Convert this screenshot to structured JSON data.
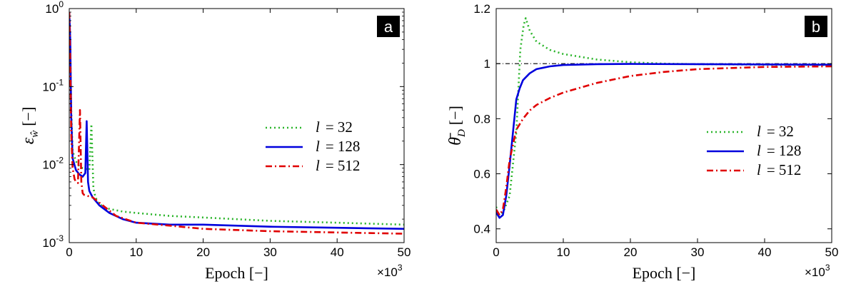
{
  "chart_data": [
    {
      "panel": "a",
      "type": "line",
      "yscale": "log",
      "xlabel": "Epoch [−]",
      "x_multiplier": "×10",
      "x_multiplier_exp": "3",
      "ylabel": "ε",
      "ylabel_sub": "ŵ",
      "ylabel_unit": "[−]",
      "xlim": [
        0,
        50
      ],
      "ylim": [
        0.001,
        1
      ],
      "x_ticks": [
        0,
        10,
        20,
        30,
        40,
        50
      ],
      "x_tick_labels": [
        "0",
        "10",
        "20",
        "30",
        "40",
        "50"
      ],
      "y_ticks": [
        0.001,
        0.01,
        0.1,
        1
      ],
      "y_tick_base": [
        "10",
        "10",
        "10",
        "10"
      ],
      "y_tick_exp": [
        "-3",
        "-2",
        "-1",
        "0"
      ],
      "legend": {
        "position": "center-right",
        "entries": [
          {
            "prefix": "l",
            "text": "= 32",
            "color": "#2bb52b",
            "dash": "2,4"
          },
          {
            "prefix": "l",
            "text": "= 128",
            "color": "#0000dd",
            "dash": ""
          },
          {
            "prefix": "l",
            "text": "= 512",
            "color": "#e00000",
            "dash": "9,4,2,4"
          }
        ]
      },
      "series": [
        {
          "name": "l = 32",
          "color": "#2bb52b",
          "dash": "2,4",
          "x": [
            0,
            0.15,
            0.3,
            0.5,
            1.0,
            1.5,
            2.0,
            2.5,
            3.0,
            3.3,
            3.6,
            3.8,
            4.2,
            5,
            6,
            8,
            10,
            15,
            20,
            30,
            40,
            50
          ],
          "y": [
            0.9,
            0.3,
            0.05,
            0.015,
            0.011,
            0.0095,
            0.009,
            0.0088,
            0.0085,
            0.033,
            0.005,
            0.0042,
            0.0033,
            0.0029,
            0.0027,
            0.0025,
            0.0024,
            0.0022,
            0.0021,
            0.0019,
            0.0018,
            0.0017
          ]
        },
        {
          "name": "l = 128",
          "color": "#0000dd",
          "dash": "",
          "x": [
            0,
            0.15,
            0.3,
            0.5,
            1.0,
            1.5,
            2.0,
            2.4,
            2.6,
            2.8,
            3.0,
            3.5,
            4.5,
            6,
            8,
            10,
            15,
            20,
            30,
            40,
            50
          ],
          "y": [
            0.9,
            0.4,
            0.04,
            0.012,
            0.0085,
            0.0075,
            0.007,
            0.0078,
            0.036,
            0.006,
            0.0046,
            0.0038,
            0.003,
            0.0024,
            0.002,
            0.0018,
            0.0017,
            0.0017,
            0.0016,
            0.00155,
            0.0015
          ]
        },
        {
          "name": "l = 512",
          "color": "#e00000",
          "dash": "9,4,2,4",
          "x": [
            0,
            0.15,
            0.3,
            0.5,
            0.8,
            1.0,
            1.3,
            1.6,
            1.8,
            2.0,
            2.2,
            2.6,
            3.5,
            5,
            7,
            10,
            15,
            20,
            30,
            40,
            50
          ],
          "y": [
            0.9,
            0.2,
            0.025,
            0.009,
            0.0065,
            0.006,
            0.0058,
            0.05,
            0.006,
            0.0043,
            0.0041,
            0.004,
            0.0038,
            0.003,
            0.0022,
            0.0018,
            0.00165,
            0.0015,
            0.0014,
            0.00135,
            0.0013
          ]
        }
      ],
      "badge": "a"
    },
    {
      "panel": "b",
      "type": "line",
      "yscale": "linear",
      "xlabel": "Epoch [−]",
      "x_multiplier": "×10",
      "x_multiplier_exp": "3",
      "ylabel": "θ̄",
      "ylabel_sub": "D",
      "ylabel_unit": "[−]",
      "xlim": [
        0,
        50
      ],
      "ylim": [
        0.35,
        1.2
      ],
      "x_ticks": [
        0,
        10,
        20,
        30,
        40,
        50
      ],
      "x_tick_labels": [
        "0",
        "10",
        "20",
        "30",
        "40",
        "50"
      ],
      "y_ticks": [
        0.4,
        0.6,
        0.8,
        1.0,
        1.2
      ],
      "y_tick_labels": [
        "0.4",
        "0.6",
        "0.8",
        "1",
        "1.2"
      ],
      "reference_line": {
        "y": 1.0,
        "color": "#000000",
        "dash": "6,3,1,3"
      },
      "legend": {
        "position": "center-right",
        "entries": [
          {
            "prefix": "l",
            "text": "= 32",
            "color": "#2bb52b",
            "dash": "2,4"
          },
          {
            "prefix": "l",
            "text": "= 128",
            "color": "#0000dd",
            "dash": ""
          },
          {
            "prefix": "l",
            "text": "= 512",
            "color": "#e00000",
            "dash": "9,4,2,4"
          }
        ]
      },
      "series": [
        {
          "name": "l = 32",
          "color": "#2bb52b",
          "dash": "2,4",
          "x": [
            0,
            0.3,
            0.7,
            1.2,
            2.0,
            3.0,
            3.6,
            4.1,
            4.4,
            5.0,
            6,
            8,
            10,
            15,
            20,
            25,
            30,
            40,
            50
          ],
          "y": [
            0.48,
            0.45,
            0.45,
            0.47,
            0.52,
            0.75,
            1.05,
            1.14,
            1.165,
            1.12,
            1.08,
            1.05,
            1.035,
            1.015,
            1.005,
            1.0,
            0.998,
            0.996,
            0.995
          ]
        },
        {
          "name": "l = 128",
          "color": "#0000dd",
          "dash": "",
          "x": [
            0,
            0.5,
            1.0,
            1.5,
            2.0,
            2.5,
            3.0,
            3.5,
            4.0,
            5,
            6,
            8,
            10,
            15,
            20,
            30,
            40,
            50
          ],
          "y": [
            0.46,
            0.44,
            0.45,
            0.52,
            0.63,
            0.75,
            0.87,
            0.91,
            0.94,
            0.965,
            0.98,
            0.99,
            0.995,
            0.998,
            0.999,
            0.998,
            0.997,
            0.996
          ]
        },
        {
          "name": "l = 512",
          "color": "#e00000",
          "dash": "9,4,2,4",
          "x": [
            0,
            0.5,
            1.0,
            1.5,
            2.0,
            3.0,
            4.0,
            5,
            6,
            8,
            10,
            15,
            20,
            25,
            30,
            40,
            50
          ],
          "y": [
            0.47,
            0.45,
            0.47,
            0.55,
            0.65,
            0.76,
            0.8,
            0.83,
            0.85,
            0.875,
            0.895,
            0.93,
            0.955,
            0.97,
            0.98,
            0.988,
            0.99
          ]
        }
      ],
      "badge": "b"
    }
  ]
}
